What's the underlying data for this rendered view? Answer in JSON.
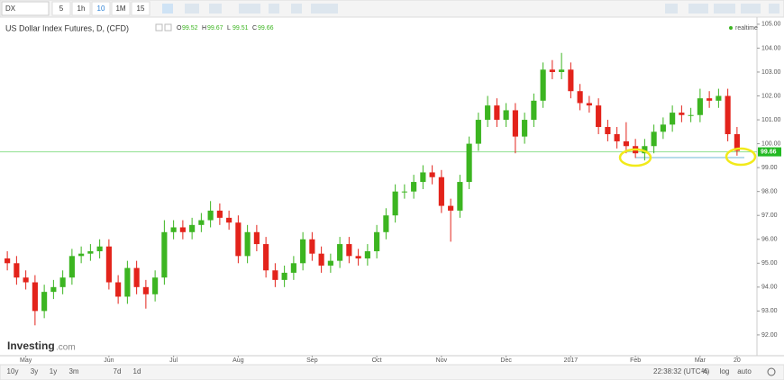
{
  "toolbar": {
    "symbol": "DX",
    "intervals": [
      "5",
      "1h",
      "10",
      "1M",
      "15"
    ],
    "active": 2
  },
  "footer": {
    "ranges": [
      "10y",
      "3y",
      "1y",
      "3m",
      "7d",
      "1d"
    ],
    "clock": "22:38:32 (UTC-4)",
    "options": [
      "%",
      "log",
      "auto"
    ]
  },
  "brand": [
    "Investing",
    ".com"
  ],
  "status": "realtime",
  "chart_data": {
    "type": "candlestick",
    "title": "US Dollar Index Futures, D, (CFD)",
    "ohlc_legend": [
      {
        "label": "O",
        "value": 99.52
      },
      {
        "label": "H",
        "value": 99.67
      },
      {
        "label": "L",
        "value": 99.51
      },
      {
        "label": "C",
        "value": 99.66
      }
    ],
    "last_price": 99.66,
    "support_line": 99.42,
    "up_color": "#3cb521",
    "down_color": "#e3231b",
    "categories": [
      null,
      null,
      "May",
      null,
      null,
      null,
      null,
      null,
      null,
      null,
      null,
      "Jun",
      null,
      null,
      null,
      null,
      null,
      null,
      "Jul",
      null,
      null,
      null,
      null,
      null,
      null,
      "Aug",
      null,
      null,
      null,
      null,
      null,
      null,
      null,
      "Sep",
      null,
      null,
      null,
      null,
      null,
      null,
      "Oct",
      null,
      null,
      null,
      null,
      null,
      null,
      "Nov",
      null,
      null,
      null,
      null,
      null,
      null,
      "Dec",
      null,
      null,
      null,
      null,
      null,
      null,
      "2017",
      null,
      null,
      null,
      null,
      null,
      null,
      "Feb",
      null,
      null,
      null,
      null,
      null,
      null,
      "Mar",
      null,
      null,
      null,
      "20"
    ],
    "open": [
      95.2,
      95.0,
      94.4,
      94.2,
      93.0,
      93.8,
      94.0,
      94.4,
      95.3,
      95.4,
      95.5,
      95.7,
      94.2,
      93.6,
      94.8,
      94.0,
      93.7,
      94.4,
      96.3,
      96.5,
      96.3,
      96.6,
      96.8,
      97.2,
      96.9,
      96.7,
      95.3,
      96.3,
      95.8,
      94.7,
      94.3,
      94.6,
      95.0,
      96.0,
      95.4,
      94.9,
      95.1,
      95.8,
      95.3,
      95.2,
      95.5,
      96.3,
      97.0,
      98.0,
      98.0,
      98.4,
      98.8,
      98.6,
      97.4,
      97.2,
      98.4,
      100.0,
      101.0,
      101.6,
      101.0,
      101.4,
      100.3,
      101.0,
      101.8,
      103.1,
      103.0,
      103.1,
      102.2,
      101.7,
      101.6,
      100.7,
      100.4,
      100.1,
      99.9,
      99.6,
      99.9,
      100.5,
      100.8,
      101.3,
      101.2,
      101.2,
      101.9,
      101.8,
      102.0,
      100.4
    ],
    "high": [
      95.5,
      95.3,
      94.7,
      94.5,
      94.1,
      94.3,
      94.7,
      95.6,
      95.7,
      95.8,
      96.0,
      96.0,
      94.5,
      95.1,
      95.1,
      94.3,
      94.7,
      96.8,
      96.8,
      96.8,
      96.9,
      97.1,
      97.6,
      97.5,
      97.2,
      97.0,
      96.6,
      96.6,
      96.1,
      95.0,
      94.9,
      95.3,
      96.3,
      96.3,
      95.7,
      95.4,
      96.1,
      96.1,
      95.6,
      95.8,
      96.6,
      97.3,
      98.3,
      98.3,
      98.7,
      99.1,
      99.1,
      98.9,
      97.7,
      98.7,
      100.3,
      101.3,
      102.0,
      101.9,
      101.7,
      101.7,
      101.3,
      102.1,
      103.4,
      103.5,
      103.8,
      103.4,
      102.5,
      102.0,
      101.9,
      101.0,
      100.7,
      100.9,
      100.2,
      100.2,
      100.8,
      101.1,
      101.6,
      101.6,
      101.5,
      102.3,
      102.2,
      102.3,
      102.3,
      100.7
    ],
    "low": [
      94.7,
      94.1,
      93.9,
      92.4,
      92.7,
      93.5,
      93.7,
      94.1,
      95.0,
      95.1,
      95.2,
      93.9,
      93.3,
      93.3,
      93.7,
      93.1,
      93.4,
      94.1,
      96.0,
      96.0,
      96.0,
      96.3,
      96.5,
      96.6,
      96.4,
      95.0,
      95.0,
      95.5,
      94.4,
      94.0,
      94.0,
      94.3,
      94.7,
      95.1,
      94.6,
      94.6,
      94.8,
      95.0,
      94.9,
      94.9,
      95.2,
      96.0,
      96.7,
      97.7,
      97.7,
      98.1,
      98.3,
      97.1,
      95.9,
      96.9,
      98.1,
      99.7,
      100.7,
      100.7,
      100.7,
      99.6,
      100.0,
      100.7,
      101.5,
      102.7,
      102.7,
      101.9,
      101.4,
      101.3,
      100.4,
      100.1,
      99.8,
      99.6,
      99.4,
      99.3,
      99.6,
      100.2,
      100.5,
      100.9,
      100.9,
      100.9,
      101.5,
      101.5,
      100.1,
      99.5
    ],
    "close": [
      95.0,
      94.4,
      94.2,
      93.0,
      93.8,
      94.0,
      94.4,
      95.3,
      95.4,
      95.5,
      95.7,
      94.2,
      93.6,
      94.8,
      94.0,
      93.7,
      94.4,
      96.3,
      96.5,
      96.3,
      96.6,
      96.8,
      97.2,
      96.9,
      96.7,
      95.3,
      96.3,
      95.8,
      94.7,
      94.3,
      94.6,
      95.0,
      96.0,
      95.4,
      94.9,
      95.1,
      95.8,
      95.3,
      95.2,
      95.5,
      96.3,
      97.0,
      98.0,
      98.0,
      98.4,
      98.8,
      98.6,
      97.4,
      97.2,
      98.4,
      100.0,
      101.0,
      101.6,
      101.0,
      101.4,
      100.3,
      101.0,
      101.8,
      103.1,
      103.0,
      103.1,
      102.2,
      101.7,
      101.6,
      100.7,
      100.4,
      100.1,
      99.9,
      99.6,
      99.9,
      100.5,
      100.8,
      101.3,
      101.2,
      101.2,
      101.9,
      101.8,
      102.0,
      100.4,
      99.7
    ],
    "ylim": [
      91.13,
      105.26
    ],
    "yticks": [
      {
        "value": 92,
        "label": "92.00"
      },
      {
        "value": 93,
        "label": "93.00"
      },
      {
        "value": 94,
        "label": "94.00"
      },
      {
        "value": 95,
        "label": "95.00"
      },
      {
        "value": 96,
        "label": "96.00"
      },
      {
        "value": 97,
        "label": "97.00"
      },
      {
        "value": 98,
        "label": "98.00"
      },
      {
        "value": 99,
        "label": "99.00"
      },
      {
        "value": 100,
        "label": "100.00"
      },
      {
        "value": 101,
        "label": "101.00"
      },
      {
        "value": 102,
        "label": "102.00"
      },
      {
        "value": 103,
        "label": "103.00"
      },
      {
        "value": 104,
        "label": "104.00"
      },
      {
        "value": 105,
        "label": "105.00"
      }
    ],
    "grid": false
  }
}
